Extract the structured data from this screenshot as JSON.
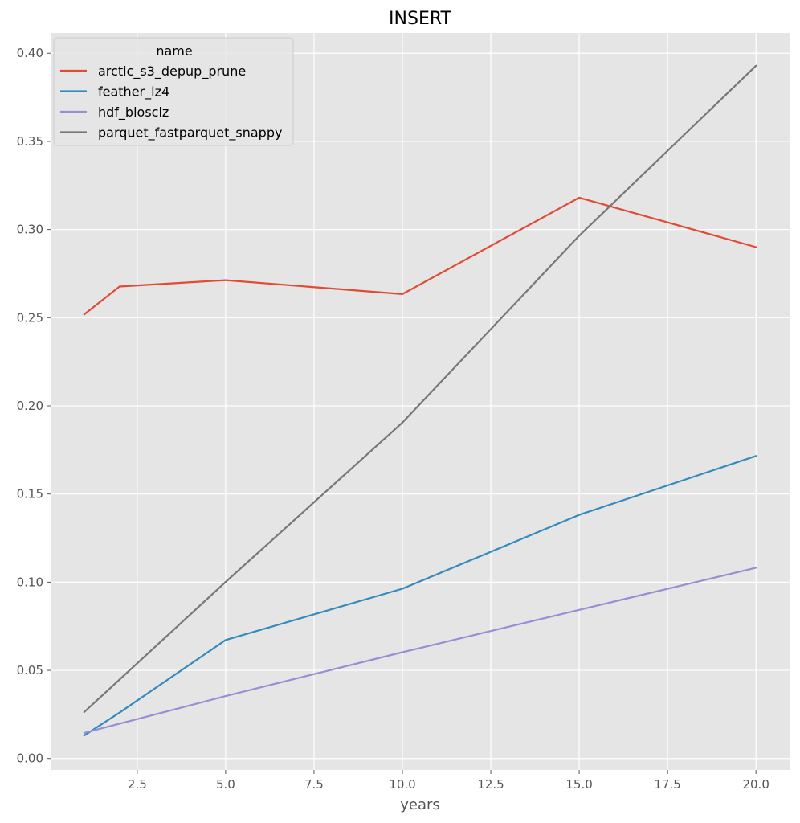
{
  "chart_data": {
    "type": "line",
    "title": "INSERT",
    "xlabel": "years",
    "ylabel": "",
    "xlim": [
      0.05,
      20.95
    ],
    "ylim": [
      -0.0065,
      0.4115
    ],
    "xticks": [
      2.5,
      5.0,
      7.5,
      10.0,
      12.5,
      15.0,
      17.5,
      20.0
    ],
    "xtick_labels": [
      "2.5",
      "5.0",
      "7.5",
      "10.0",
      "12.5",
      "15.0",
      "17.5",
      "20.0"
    ],
    "yticks": [
      0.0,
      0.05,
      0.1,
      0.15,
      0.2,
      0.25,
      0.3,
      0.35,
      0.4
    ],
    "ytick_labels": [
      "0.00",
      "0.05",
      "0.10",
      "0.15",
      "0.20",
      "0.25",
      "0.30",
      "0.35",
      "0.40"
    ],
    "grid": true,
    "legend": {
      "title": "name",
      "placement": "top-left"
    },
    "series": [
      {
        "name": "arctic_s3_depup_prune",
        "color": "#e24a33",
        "x": [
          1,
          2,
          5,
          10,
          15,
          20
        ],
        "y": [
          0.2518,
          0.2677,
          0.2713,
          0.2634,
          0.3181,
          0.29
        ]
      },
      {
        "name": "feather_lz4",
        "color": "#348abd",
        "x": [
          1,
          2,
          5,
          10,
          15,
          20
        ],
        "y": [
          0.013,
          0.026,
          0.0672,
          0.0963,
          0.1382,
          0.1716
        ]
      },
      {
        "name": "hdf_blosclz",
        "color": "#988ed5",
        "x": [
          1,
          5,
          10,
          15,
          20
        ],
        "y": [
          0.0145,
          0.0354,
          0.0603,
          0.0843,
          0.1082
        ]
      },
      {
        "name": "parquet_fastparquet_snappy",
        "color": "#777777",
        "x": [
          1,
          5,
          10,
          15,
          20
        ],
        "y": [
          0.0263,
          0.1001,
          0.1905,
          0.2965,
          0.3929
        ]
      }
    ]
  }
}
